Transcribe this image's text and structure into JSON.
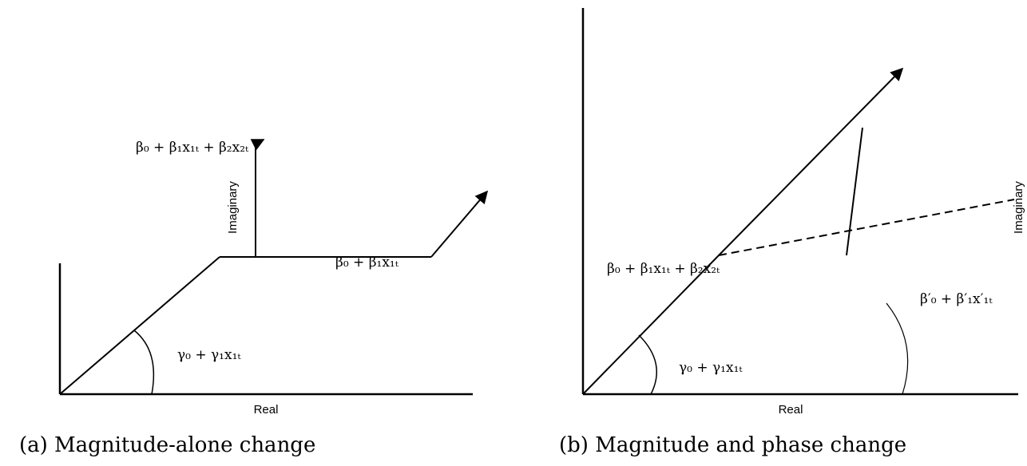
{
  "panels": [
    {
      "caption": "(a) Magnitude-alone change",
      "x_axis_label": "Real",
      "y_axis_label": "Imaginary",
      "vector_labels": [
        "β₀ + β₁x₁ₜ + β₂x₂ₜ",
        "β₀ + β₁x₁ₜ",
        "γ₀ + γ₁x₁ₜ"
      ]
    },
    {
      "caption": "(b) Magnitude and phase change",
      "x_axis_label": "Real",
      "y_axis_label": "Imaginary",
      "vector_labels": [
        "β₀ + β₁x₁ₜ + β₂x₂ₜ",
        "β′₀ + β′₁x′₁ₜ",
        "γ₀ + γ₁x₁ₜ"
      ]
    }
  ]
}
